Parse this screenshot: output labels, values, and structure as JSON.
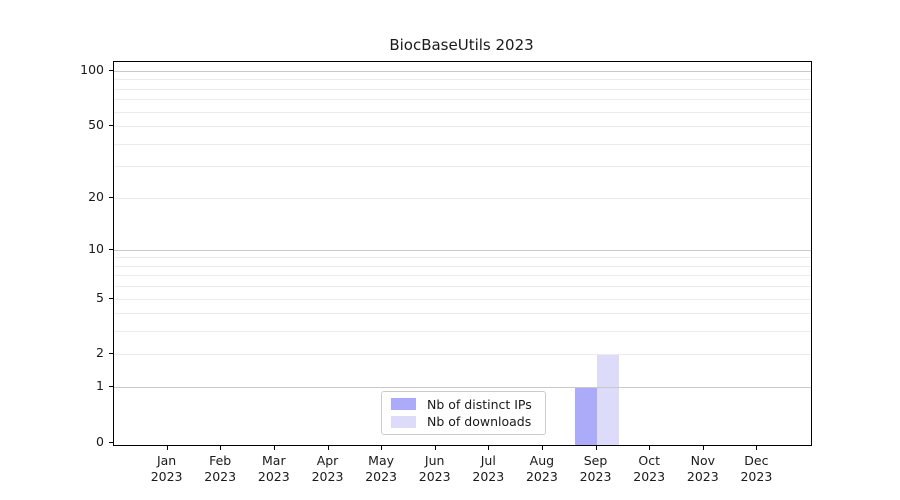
{
  "chart_data": {
    "type": "bar",
    "title": "BiocBaseUtils 2023",
    "xlabel": "",
    "ylabel": "",
    "yscale": "log1p",
    "ylim": [
      0,
      112
    ],
    "yticks": [
      0,
      1,
      2,
      5,
      10,
      20,
      50,
      100
    ],
    "grid": "horizontal",
    "gridlines": {
      "major": [
        1,
        10,
        100
      ],
      "minor": [
        2,
        3,
        4,
        5,
        6,
        7,
        8,
        9,
        20,
        30,
        40,
        50,
        60,
        70,
        80,
        90
      ]
    },
    "categories": [
      {
        "month": "Jan",
        "year": "2023"
      },
      {
        "month": "Feb",
        "year": "2023"
      },
      {
        "month": "Mar",
        "year": "2023"
      },
      {
        "month": "Apr",
        "year": "2023"
      },
      {
        "month": "May",
        "year": "2023"
      },
      {
        "month": "Jun",
        "year": "2023"
      },
      {
        "month": "Jul",
        "year": "2023"
      },
      {
        "month": "Aug",
        "year": "2023"
      },
      {
        "month": "Sep",
        "year": "2023"
      },
      {
        "month": "Oct",
        "year": "2023"
      },
      {
        "month": "Nov",
        "year": "2023"
      },
      {
        "month": "Dec",
        "year": "2023"
      }
    ],
    "series": [
      {
        "name": "Nb of distinct IPs",
        "color": "#ababf9",
        "values": [
          0,
          0,
          0,
          0,
          0,
          0,
          0,
          0,
          1,
          0,
          0,
          0
        ]
      },
      {
        "name": "Nb of downloads",
        "color": "#dcdcfa",
        "values": [
          0,
          0,
          0,
          0,
          0,
          0,
          0,
          0,
          2,
          0,
          0,
          0
        ]
      }
    ],
    "legend_position": "inside bottom-center"
  },
  "colors": {
    "background": "#ffffff",
    "spine": "#000000",
    "text": "#1a1a1a",
    "major_grid": "#c9c9c9",
    "minor_grid": "#ececec",
    "legend_border": "#cccccc"
  }
}
